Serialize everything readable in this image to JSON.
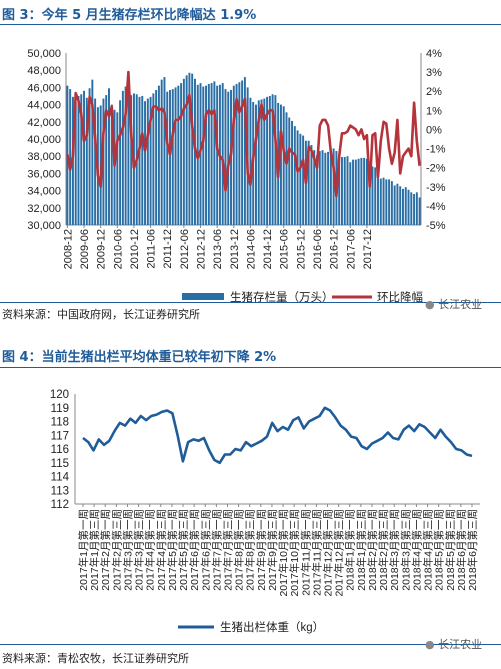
{
  "figure3": {
    "title": "图 3：今年 5 月生猪存栏环比降幅达 1.9%",
    "source": "资料来源：中国政府网，长江证券研究所",
    "watermark": "长江农业",
    "chart_data": {
      "type": "bar+line",
      "title": "",
      "ylabel_left": "",
      "ylabel_right": "",
      "ylim_left": [
        30000,
        50000
      ],
      "yticks_left": [
        "30,000",
        "32,000",
        "34,000",
        "36,000",
        "38,000",
        "40,000",
        "42,000",
        "44,000",
        "46,000",
        "48,000",
        "50,000"
      ],
      "ylim_right": [
        -5,
        4
      ],
      "yticks_right": [
        "-5%",
        "-4%",
        "-3%",
        "-2%",
        "-1%",
        "0%",
        "1%",
        "2%",
        "3%",
        "4%"
      ],
      "xticks": [
        "2008-12",
        "2009-06",
        "2009-12",
        "2010-06",
        "2010-12",
        "2011-06",
        "2011-12",
        "2012-06",
        "2012-12",
        "2013-06",
        "2013-12",
        "2014-06",
        "2014-12",
        "2015-06",
        "2015-12",
        "2016-06",
        "2016-12",
        "2017-06",
        "2017-12"
      ],
      "x_start": "2008-12",
      "x_end": "2018-05",
      "grid": false,
      "legend_position": "bottom",
      "series": [
        {
          "name": "生猪存栏量（万头）",
          "type": "bar",
          "color": "#2a6ea6",
          "values": [
            46200,
            45800,
            44900,
            44300,
            45000,
            45200,
            45600,
            44800,
            45900,
            46900,
            44700,
            43700,
            43900,
            44700,
            45100,
            45900,
            44000,
            43400,
            43100,
            44500,
            45600,
            46100,
            46900,
            45100,
            45300,
            45200,
            44900,
            45000,
            44400,
            44700,
            44900,
            45300,
            45700,
            46200,
            46900,
            47200,
            45500,
            45700,
            45800,
            46000,
            46200,
            46500,
            47000,
            47400,
            47700,
            47600,
            47000,
            46300,
            46500,
            46100,
            46200,
            46400,
            46500,
            46700,
            46200,
            46300,
            46500,
            45800,
            45500,
            45700,
            46200,
            46400,
            46600,
            46800,
            47200,
            46000,
            44800,
            44300,
            44000,
            44500,
            44600,
            44700,
            44900,
            45000,
            45200,
            45100,
            44200,
            44000,
            43800,
            43100,
            42500,
            42100,
            41500,
            41000,
            40600,
            40400,
            39800,
            39800,
            39300,
            38700,
            38100,
            38600,
            38700,
            38400,
            38500,
            38700,
            38900,
            38600,
            38200,
            37900,
            37900,
            38000,
            37300,
            37600,
            37600,
            37700,
            37800,
            37800,
            37700,
            36500,
            36800,
            36700,
            35700,
            35400,
            35500,
            35300,
            35300,
            35100,
            34600,
            34800,
            34500,
            34200,
            34400,
            34100,
            33800,
            33600,
            33800,
            33200
          ]
        },
        {
          "name": "环比降幅",
          "type": "line",
          "color": "#b5333a",
          "unit": "%",
          "values": [
            -1.3,
            -2.1,
            -1.4,
            1.9,
            1.5,
            0.8,
            -0.6,
            -0.3,
            1.7,
            1.3,
            -0.4,
            -2.4,
            -3.0,
            -0.2,
            1.0,
            0.7,
            1.2,
            -1.9,
            -0.6,
            -0.3,
            0.1,
            0.8,
            3.0,
            -0.2,
            -2.0,
            -1.6,
            -1.0,
            -0.2,
            -1.1,
            -0.3,
            0.5,
            1.2,
            1.2,
            1.0,
            1.1,
            0.9,
            -0.7,
            -1.3,
            -0.2,
            0.5,
            0.5,
            0.7,
            1.1,
            1.3,
            1.8,
            0.2,
            -1.0,
            -1.5,
            -1.1,
            -0.6,
            0.8,
            1.0,
            0.8,
            1.0,
            -1.0,
            -1.4,
            -1.6,
            -3.2,
            -1.9,
            -1.3,
            0.5,
            1.6,
            0.9,
            1.2,
            1.6,
            -2.3,
            -2.9,
            -1.5,
            -0.5,
            0.5,
            1.3,
            0.5,
            0.8,
            1.0,
            1.0,
            -0.5,
            -2.5,
            -0.1,
            -1.1,
            -1.8,
            -1.0,
            -1.2,
            -1.3,
            -2.2,
            -2.0,
            -1.6,
            -2.8,
            -0.9,
            -1.1,
            -1.5,
            -2.0,
            0.2,
            0.5,
            0.5,
            0.2,
            -1.2,
            -2.0,
            -3.5,
            -1.4,
            -0.2,
            -0.2,
            -0.1,
            0.2,
            0.1,
            0.0,
            -0.3,
            0.0,
            -0.5,
            -0.3,
            -3.0,
            -0.3,
            -0.2,
            -2.5,
            -0.6,
            0.4,
            0.3,
            -1.0,
            -1.8,
            -1.2,
            0.5,
            -2.3,
            -1.4,
            -1.2,
            -1.0,
            -1.4,
            1.4,
            -0.6,
            -1.9
          ]
        }
      ]
    }
  },
  "figure4": {
    "title": "图 4：当前生猪出栏平均体重已较年初下降 2%",
    "source": "资料来源：青松农牧，长江证券研究所",
    "watermark": "长江农业",
    "chart_data": {
      "type": "line",
      "title": "",
      "ylabel": "",
      "ylim": [
        112,
        120
      ],
      "yticks": [
        "112",
        "113",
        "114",
        "115",
        "116",
        "117",
        "118",
        "119",
        "120"
      ],
      "grid": false,
      "legend_position": "bottom",
      "xticks": [
        "2017年1月第一周",
        "2017年1月第三周",
        "2017年2月第一周",
        "2017年2月第三周",
        "2017年3月第一周",
        "2017年3月第三周",
        "2017年4月第一周",
        "2017年4月第三周",
        "2017年5月第一周",
        "2017年5月第三周",
        "2017年6月第一周",
        "2017年6月第三周",
        "2017年7月第一周",
        "2017年7月第三周",
        "2017年8月第一周",
        "2017年8月第三周",
        "2017年9月第一周",
        "2017年9月第三周",
        "2017年10月第一周",
        "2017年10月第三周",
        "2017年11月第一周",
        "2017年11月第三周",
        "2017年12月第一周",
        "2017年12月第三周",
        "2018年1月第一周",
        "2018年1月第三周",
        "2018年2月第一周",
        "2018年2月第三周",
        "2018年3月第一周",
        "2018年3月第三周",
        "2018年4月第一周",
        "2018年4月第三周",
        "2018年5月第一周",
        "2018年5月第三周",
        "2018年6月第一周",
        "2018年6月第三周"
      ],
      "series": [
        {
          "name": "生猪出栏体重（kg）",
          "color": "#1f5c99",
          "values": [
            116.8,
            116.5,
            115.9,
            116.7,
            116.3,
            116.6,
            117.3,
            117.9,
            117.7,
            118.2,
            117.9,
            118.4,
            118.1,
            118.4,
            118.5,
            118.7,
            118.8,
            118.6,
            117.0,
            115.1,
            116.5,
            116.7,
            116.6,
            116.8,
            115.9,
            115.2,
            115.0,
            115.6,
            115.6,
            116.0,
            115.9,
            116.5,
            116.2,
            116.4,
            116.6,
            116.9,
            117.9,
            117.3,
            117.6,
            117.4,
            118.1,
            118.3,
            117.5,
            118.0,
            118.2,
            118.4,
            119.0,
            118.8,
            118.3,
            117.7,
            117.4,
            116.9,
            116.8,
            116.2,
            116.0,
            116.4,
            116.6,
            116.8,
            117.2,
            116.8,
            116.7,
            117.4,
            117.7,
            117.3,
            117.8,
            117.6,
            117.2,
            116.8,
            117.4,
            116.9,
            116.5,
            116.0,
            115.9,
            115.6,
            115.5
          ]
        }
      ]
    }
  }
}
